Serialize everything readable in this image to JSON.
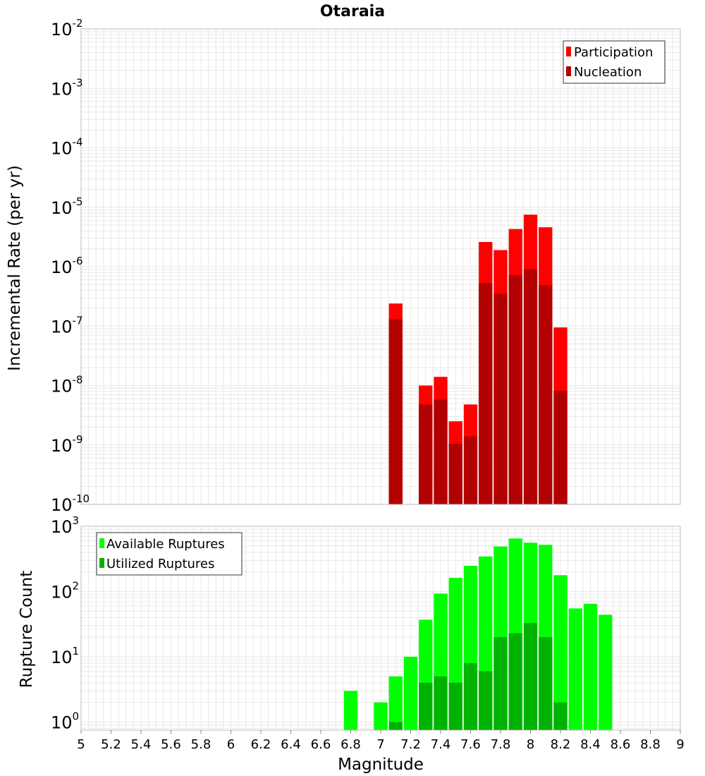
{
  "title": "Otaraia",
  "xlabel": "Magnitude",
  "colors": {
    "participation": "#ff0000",
    "nucleation": "#b20000",
    "available": "#00ff00",
    "utilized": "#00b200",
    "grid": "#e8e8e8",
    "frame": "#bbbbbb"
  },
  "chart_data": [
    {
      "type": "bar",
      "scale": "log",
      "ylabel": "Incremental Rate (per yr)",
      "xlim": [
        5,
        9
      ],
      "ylim": [
        1e-10,
        0.01
      ],
      "y_ticks": [
        {
          "base": "10",
          "exp": "-10",
          "value": 1e-10
        },
        {
          "base": "10",
          "exp": "-9",
          "value": 1e-09
        },
        {
          "base": "10",
          "exp": "-8",
          "value": 1e-08
        },
        {
          "base": "10",
          "exp": "-7",
          "value": 1e-07
        },
        {
          "base": "10",
          "exp": "-6",
          "value": 1e-06
        },
        {
          "base": "10",
          "exp": "-5",
          "value": 1e-05
        },
        {
          "base": "10",
          "exp": "-4",
          "value": 0.0001
        },
        {
          "base": "10",
          "exp": "-3",
          "value": 0.001
        },
        {
          "base": "10",
          "exp": "-2",
          "value": 0.01
        }
      ],
      "x": [
        7.1,
        7.2,
        7.3,
        7.4,
        7.5,
        7.6,
        7.7,
        7.8,
        7.9,
        8.0,
        8.1,
        8.2
      ],
      "series": [
        {
          "name": "Participation",
          "color_key": "participation",
          "values": [
            2.4e-07,
            null,
            1e-08,
            1.4e-08,
            2.5e-09,
            4.8e-09,
            2.6e-06,
            1.9e-06,
            4.3e-06,
            7.5e-06,
            4.6e-06,
            9.5e-08
          ]
        },
        {
          "name": "Nucleation",
          "color_key": "nucleation",
          "values": [
            1.3e-07,
            null,
            4.8e-09,
            5.8e-09,
            1.05e-09,
            1.4e-09,
            5.3e-07,
            3.5e-07,
            7.2e-07,
            9e-07,
            4.9e-07,
            8.2e-09
          ]
        }
      ],
      "legend": "top-right",
      "grid": true
    },
    {
      "type": "bar",
      "scale": "log",
      "ylabel": "Rupture Count",
      "xlim": [
        5,
        9
      ],
      "ylim": [
        0.75,
        1000
      ],
      "y_ticks": [
        {
          "base": "10",
          "exp": "0",
          "value": 1
        },
        {
          "base": "10",
          "exp": "1",
          "value": 10
        },
        {
          "base": "10",
          "exp": "2",
          "value": 100
        },
        {
          "base": "10",
          "exp": "3",
          "value": 1000
        }
      ],
      "x": [
        6.8,
        6.9,
        7.0,
        7.1,
        7.2,
        7.3,
        7.4,
        7.5,
        7.6,
        7.7,
        7.8,
        7.9,
        8.0,
        8.1,
        8.2,
        8.3,
        8.4,
        8.5
      ],
      "series": [
        {
          "name": "Available Ruptures",
          "color_key": "available",
          "values": [
            3,
            null,
            2,
            5,
            10,
            37,
            93,
            162,
            248,
            345,
            490,
            650,
            560,
            520,
            178,
            55,
            65,
            44
          ]
        },
        {
          "name": "Utilized Ruptures",
          "color_key": "utilized",
          "values": [
            null,
            null,
            null,
            1,
            null,
            4,
            5,
            4,
            8,
            6,
            20,
            23,
            33,
            20,
            2,
            null,
            null,
            null
          ]
        }
      ],
      "legend": "top-left",
      "grid": true
    }
  ],
  "x_ticks": [
    "5",
    "5.2",
    "5.4",
    "5.6",
    "5.8",
    "6",
    "6.2",
    "6.4",
    "6.6",
    "6.8",
    "7",
    "7.2",
    "7.4",
    "7.6",
    "7.8",
    "8",
    "8.2",
    "8.4",
    "8.6",
    "8.8",
    "9"
  ]
}
